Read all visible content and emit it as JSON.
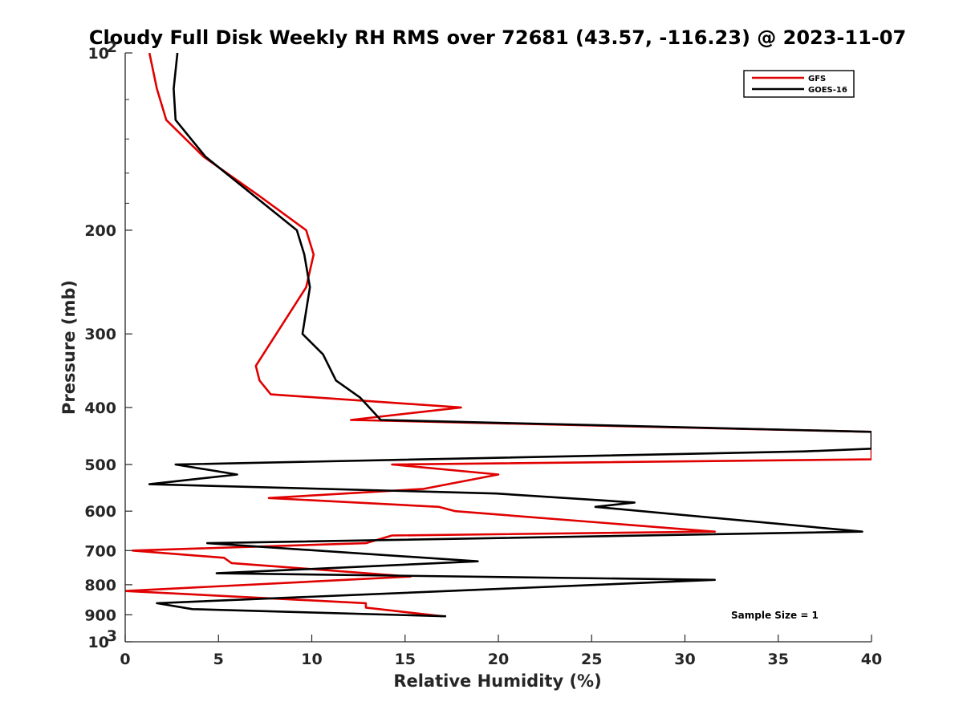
{
  "chart_data": {
    "type": "line",
    "title": "Cloudy Full Disk Weekly RH RMS over 72681 (43.57, -116.23) @ 2023-11-07",
    "xlabel": "Relative Humidity (%)",
    "ylabel": "Pressure (mb)",
    "xlim": [
      0,
      40
    ],
    "ylim": [
      100,
      1000
    ],
    "yscale": "log",
    "y_reversed": true,
    "grid": false,
    "legend_position": "top-right",
    "x_ticks": [
      "0",
      "5",
      "10",
      "15",
      "20",
      "25",
      "30",
      "35",
      "40"
    ],
    "x_tick_values": [
      0,
      5,
      10,
      15,
      20,
      25,
      30,
      35,
      40
    ],
    "y_ticks": [
      {
        "value": 100,
        "label": "10",
        "sup": "2"
      },
      {
        "value": 200,
        "label": "200",
        "sup": ""
      },
      {
        "value": 300,
        "label": "300",
        "sup": ""
      },
      {
        "value": 400,
        "label": "400",
        "sup": ""
      },
      {
        "value": 500,
        "label": "500",
        "sup": ""
      },
      {
        "value": 600,
        "label": "600",
        "sup": ""
      },
      {
        "value": 700,
        "label": "700",
        "sup": ""
      },
      {
        "value": 800,
        "label": "800",
        "sup": ""
      },
      {
        "value": 900,
        "label": "900",
        "sup": ""
      },
      {
        "value": 1000,
        "label": "10",
        "sup": "3"
      }
    ],
    "annotation": "Sample Size = 1",
    "series": [
      {
        "name": "GFS",
        "color": "#e00000",
        "points": [
          [
            1.3,
            100
          ],
          [
            1.7,
            115
          ],
          [
            2.2,
            130
          ],
          [
            4.2,
            150
          ],
          [
            7.2,
            175
          ],
          [
            9.7,
            200
          ],
          [
            10.1,
            220
          ],
          [
            9.7,
            250
          ],
          [
            8.1,
            300
          ],
          [
            7.0,
            340
          ],
          [
            7.2,
            360
          ],
          [
            7.8,
            380
          ],
          [
            18.0,
            400
          ],
          [
            12.1,
            420
          ],
          [
            40.0,
            440
          ],
          [
            40.0,
            490
          ],
          [
            14.3,
            500
          ],
          [
            20.0,
            520
          ],
          [
            16.0,
            550
          ],
          [
            7.7,
            570
          ],
          [
            16.8,
            590
          ],
          [
            17.7,
            600
          ],
          [
            31.6,
            650
          ],
          [
            14.3,
            660
          ],
          [
            12.9,
            680
          ],
          [
            0.4,
            700
          ],
          [
            5.3,
            720
          ],
          [
            5.7,
            735
          ],
          [
            15.3,
            775
          ],
          [
            0.0,
            820
          ],
          [
            12.9,
            860
          ],
          [
            12.9,
            875
          ],
          [
            17.0,
            905
          ]
        ]
      },
      {
        "name": "GOES-16",
        "color": "#000000",
        "points": [
          [
            2.8,
            100
          ],
          [
            2.6,
            115
          ],
          [
            2.7,
            130
          ],
          [
            4.3,
            150
          ],
          [
            9.2,
            200
          ],
          [
            9.6,
            220
          ],
          [
            9.9,
            250
          ],
          [
            9.5,
            300
          ],
          [
            10.6,
            325
          ],
          [
            11.3,
            360
          ],
          [
            12.6,
            385
          ],
          [
            13.7,
            420
          ],
          [
            40.0,
            440
          ],
          [
            40.0,
            470
          ],
          [
            36.4,
            475
          ],
          [
            2.7,
            500
          ],
          [
            6.0,
            520
          ],
          [
            1.3,
            540
          ],
          [
            19.9,
            560
          ],
          [
            27.3,
            580
          ],
          [
            25.2,
            590
          ],
          [
            39.5,
            650
          ],
          [
            4.4,
            680
          ],
          [
            18.9,
            730
          ],
          [
            4.9,
            765
          ],
          [
            31.6,
            785
          ],
          [
            1.7,
            860
          ],
          [
            3.6,
            880
          ],
          [
            17.2,
            905
          ]
        ]
      }
    ]
  }
}
